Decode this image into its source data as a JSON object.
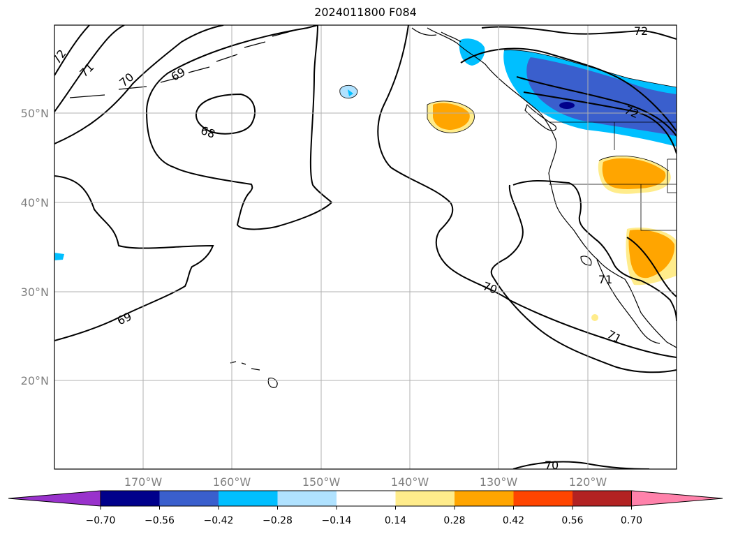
{
  "title": "2024011800 F084",
  "map": {
    "lat_labels": [
      "50°N",
      "40°N",
      "30°N",
      "20°N"
    ],
    "lon_labels": [
      "170°W",
      "160°W",
      "150°W",
      "140°W",
      "130°W",
      "120°W"
    ],
    "contour_labels": [
      "72",
      "71",
      "70",
      "69",
      "68",
      "69",
      "70",
      "70",
      "71",
      "71",
      "72",
      "72"
    ]
  },
  "colorbar": {
    "ticks": [
      "−0.70",
      "−0.56",
      "−0.42",
      "−0.28",
      "−0.14",
      "0.14",
      "0.28",
      "0.42",
      "0.56",
      "0.70"
    ],
    "colors": [
      "#9932CC",
      "#00008B",
      "#3A5FCD",
      "#00BFFF",
      "#B0E2FF",
      "#FFFFFF",
      "#FFEC8B",
      "#FFA500",
      "#FF4500",
      "#B22222",
      "#FF82AB"
    ]
  }
}
